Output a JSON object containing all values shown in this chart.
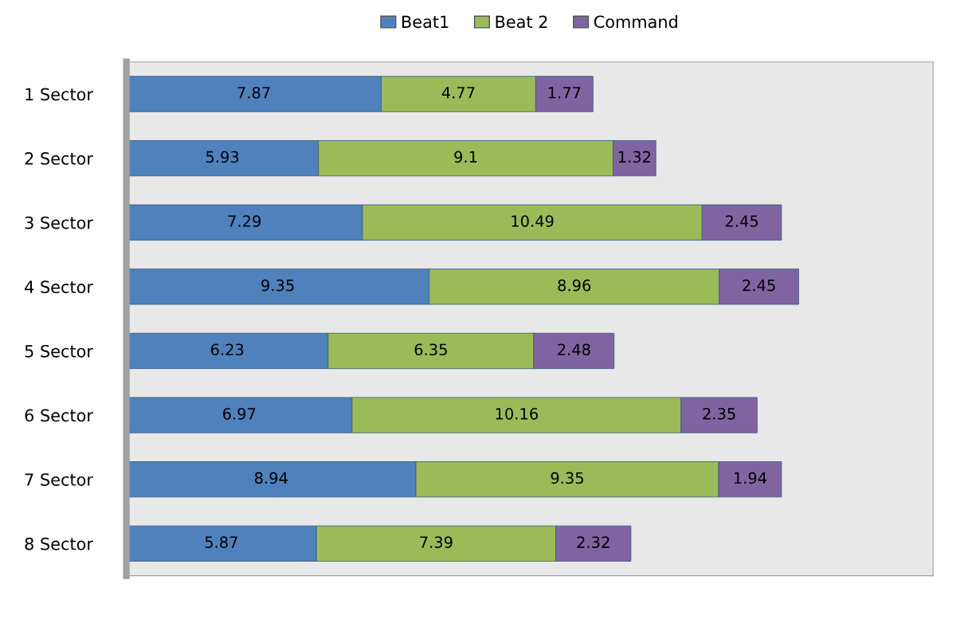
{
  "chart_data": {
    "type": "bar",
    "orientation": "horizontal",
    "stacked": true,
    "data_labels": true,
    "legend": "top",
    "grid": false,
    "tick_labels": "y",
    "categories": [
      "1 Sector",
      "2 Sector",
      "3 Sector",
      "4 Sector",
      "5 Sector",
      "6 Sector",
      "7 Sector",
      "8 Sector"
    ],
    "series": [
      {
        "name": "Beat1",
        "color": "#4f81bd",
        "values": [
          7.87,
          5.93,
          7.29,
          9.35,
          6.23,
          6.97,
          8.94,
          5.87
        ]
      },
      {
        "name": "Beat 2",
        "color": "#9bbb59",
        "values": [
          4.77,
          9.1,
          10.49,
          8.96,
          6.35,
          10.16,
          9.35,
          7.39
        ]
      },
      {
        "name": "Command",
        "color": "#8064a2",
        "values": [
          1.77,
          1.32,
          2.45,
          2.45,
          2.48,
          2.35,
          1.94,
          2.32
        ]
      }
    ]
  }
}
